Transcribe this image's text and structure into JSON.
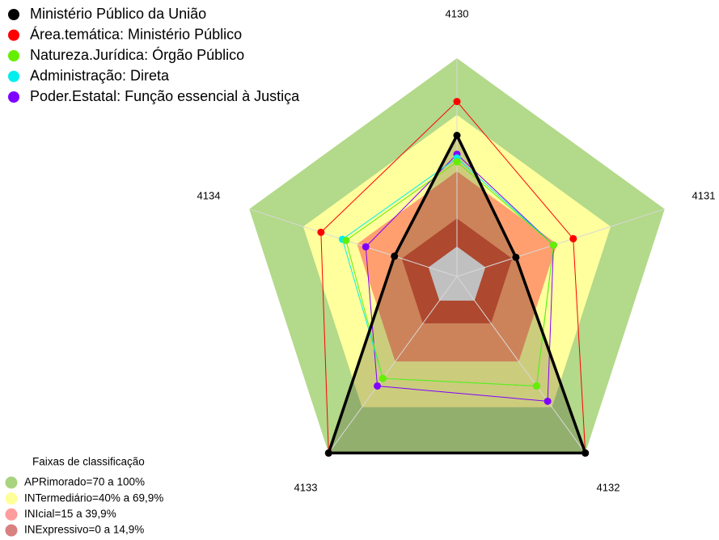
{
  "chart_data": {
    "type": "radar",
    "axes": [
      "4130",
      "4131",
      "4132",
      "4133",
      "4134"
    ],
    "rlim": [
      0,
      100
    ],
    "series": [
      {
        "name": "Ministério Público da União",
        "color": "#000000",
        "values": [
          59,
          17,
          100,
          100,
          19
        ]
      },
      {
        "name": "Área.temática: Ministério Público",
        "color": "#ff0000",
        "values": [
          77,
          49,
          100,
          100,
          60
        ]
      },
      {
        "name": "Natureza.Jurídica: Órgão Público",
        "color": "#66ee00",
        "values": [
          45,
          38,
          56,
          51,
          46
        ]
      },
      {
        "name": "Administração: Direta",
        "color": "#00eeee",
        "values": [
          47,
          38,
          56,
          51,
          48
        ]
      },
      {
        "name": "Poder.Estatal: Função essencial à Justiça",
        "color": "#8000ff",
        "values": [
          49,
          38,
          66,
          56,
          35
        ]
      }
    ],
    "bands_title": "Faixas de classificação",
    "bands": [
      {
        "label": "APRimorado=70 a 100%",
        "from": 70,
        "to": 100,
        "color": "#b3d98a",
        "legend_color": "#a8d480"
      },
      {
        "label": "INTermediário=40% a 69,9%",
        "from": 40,
        "to": 69.9,
        "color": "#ffff9e",
        "legend_color": "#ffff99"
      },
      {
        "label": "INIcial=15 a 39,9%",
        "from": 15,
        "to": 39.9,
        "color": "#ff9f70",
        "legend_color": "#ff9c9c"
      },
      {
        "label": "INExpressivo=0 a 14,9%",
        "from": 0,
        "to": 14.9,
        "color": "#d85238",
        "legend_color": "#d98080"
      }
    ]
  }
}
